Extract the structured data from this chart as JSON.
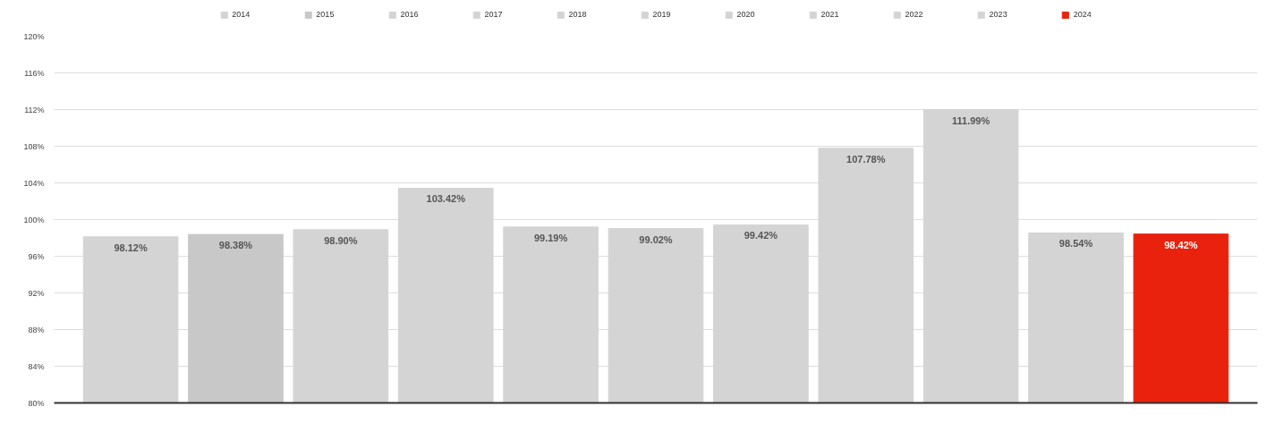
{
  "chart_data": {
    "type": "bar",
    "categories": [
      null
    ],
    "series": [
      {
        "name": "2014",
        "color": "#d4d4d4",
        "values": [
          98.12
        ],
        "value_labels": [
          "98.12%"
        ]
      },
      {
        "name": "2015",
        "color": "#c8c8c8",
        "values": [
          98.38
        ],
        "value_labels": [
          "98.38%"
        ]
      },
      {
        "name": "2016",
        "color": "#d4d4d4",
        "values": [
          98.9
        ],
        "value_labels": [
          "98.90%"
        ]
      },
      {
        "name": "2017",
        "color": "#d4d4d4",
        "values": [
          103.42
        ],
        "value_labels": [
          "103.42%"
        ]
      },
      {
        "name": "2018",
        "color": "#d4d4d4",
        "values": [
          99.19
        ],
        "value_labels": [
          "99.19%"
        ]
      },
      {
        "name": "2019",
        "color": "#d4d4d4",
        "values": [
          99.02
        ],
        "value_labels": [
          "99.02%"
        ]
      },
      {
        "name": "2020",
        "color": "#d4d4d4",
        "values": [
          99.42
        ],
        "value_labels": [
          "99.42%"
        ]
      },
      {
        "name": "2021",
        "color": "#d4d4d4",
        "values": [
          107.78
        ],
        "value_labels": [
          "107.78%"
        ]
      },
      {
        "name": "2022",
        "color": "#d4d4d4",
        "values": [
          111.99
        ],
        "value_labels": [
          "111.99%"
        ]
      },
      {
        "name": "2023",
        "color": "#d4d4d4",
        "values": [
          98.54
        ],
        "value_labels": [
          "98.54%"
        ]
      },
      {
        "name": "2024",
        "color": "#e8220c",
        "values": [
          98.42
        ],
        "value_labels": [
          "98.42%"
        ]
      }
    ],
    "ylim": [
      80,
      120
    ],
    "yticks": [
      {
        "value": 80,
        "label": "80%"
      },
      {
        "value": 84,
        "label": "84%"
      },
      {
        "value": 88,
        "label": "88%"
      },
      {
        "value": 92,
        "label": "92%"
      },
      {
        "value": 96,
        "label": "96%"
      },
      {
        "value": 100,
        "label": "100%"
      },
      {
        "value": 104,
        "label": "104%"
      },
      {
        "value": 108,
        "label": "108%"
      },
      {
        "value": 112,
        "label": "112%"
      },
      {
        "value": 116,
        "label": "116%"
      },
      {
        "value": 120,
        "label": "120%"
      }
    ],
    "grid": "y",
    "legend": "top",
    "tick_labels": "y"
  }
}
